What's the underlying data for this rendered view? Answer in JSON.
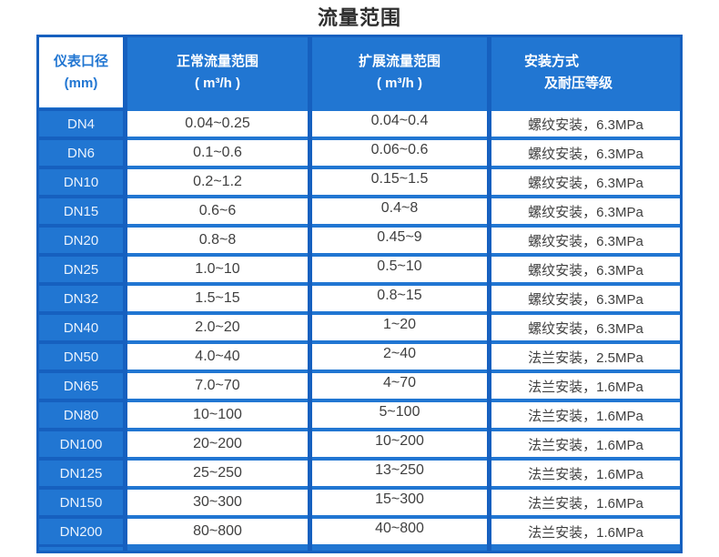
{
  "title": "流量范围",
  "theme": {
    "main_blue": "#2176d2",
    "border_blue": "#1660bf",
    "header_text": "#ffffff",
    "data_text": "#3f3f3f"
  },
  "table": {
    "headers": {
      "col1_line1": "仪表口径",
      "col1_line2": "(mm)",
      "col2_line1": "正常流量范围",
      "col2_line2": "( m³/h )",
      "col3_line1": "扩展流量范围",
      "col3_line2": "( m³/h )",
      "col4_line1": "安装方式",
      "col4_line2": "及耐压等级"
    },
    "rows": [
      {
        "dn": "DN4",
        "normal": "0.04~0.25",
        "extended": "0.04~0.4",
        "install": "螺纹安装，6.3MPa"
      },
      {
        "dn": "DN6",
        "normal": "0.1~0.6",
        "extended": "0.06~0.6",
        "install": "螺纹安装，6.3MPa"
      },
      {
        "dn": "DN10",
        "normal": "0.2~1.2",
        "extended": "0.15~1.5",
        "install": "螺纹安装，6.3MPa"
      },
      {
        "dn": "DN15",
        "normal": "0.6~6",
        "extended": "0.4~8",
        "install": "螺纹安装，6.3MPa"
      },
      {
        "dn": "DN20",
        "normal": "0.8~8",
        "extended": "0.45~9",
        "install": "螺纹安装，6.3MPa"
      },
      {
        "dn": "DN25",
        "normal": "1.0~10",
        "extended": "0.5~10",
        "install": "螺纹安装，6.3MPa"
      },
      {
        "dn": "DN32",
        "normal": "1.5~15",
        "extended": "0.8~15",
        "install": "螺纹安装，6.3MPa"
      },
      {
        "dn": "DN40",
        "normal": "2.0~20",
        "extended": "1~20",
        "install": "螺纹安装，6.3MPa"
      },
      {
        "dn": "DN50",
        "normal": "4.0~40",
        "extended": "2~40",
        "install": "法兰安装，2.5MPa"
      },
      {
        "dn": "DN65",
        "normal": "7.0~70",
        "extended": "4~70",
        "install": "法兰安装，1.6MPa"
      },
      {
        "dn": "DN80",
        "normal": "10~100",
        "extended": "5~100",
        "install": "法兰安装，1.6MPa"
      },
      {
        "dn": "DN100",
        "normal": "20~200",
        "extended": "10~200",
        "install": "法兰安装，1.6MPa"
      },
      {
        "dn": "DN125",
        "normal": "25~250",
        "extended": "13~250",
        "install": "法兰安装，1.6MPa"
      },
      {
        "dn": "DN150",
        "normal": "30~300",
        "extended": "15~300",
        "install": "法兰安装，1.6MPa"
      },
      {
        "dn": "DN200",
        "normal": "80~800",
        "extended": "40~800",
        "install": "法兰安装，1.6MPa"
      }
    ]
  }
}
